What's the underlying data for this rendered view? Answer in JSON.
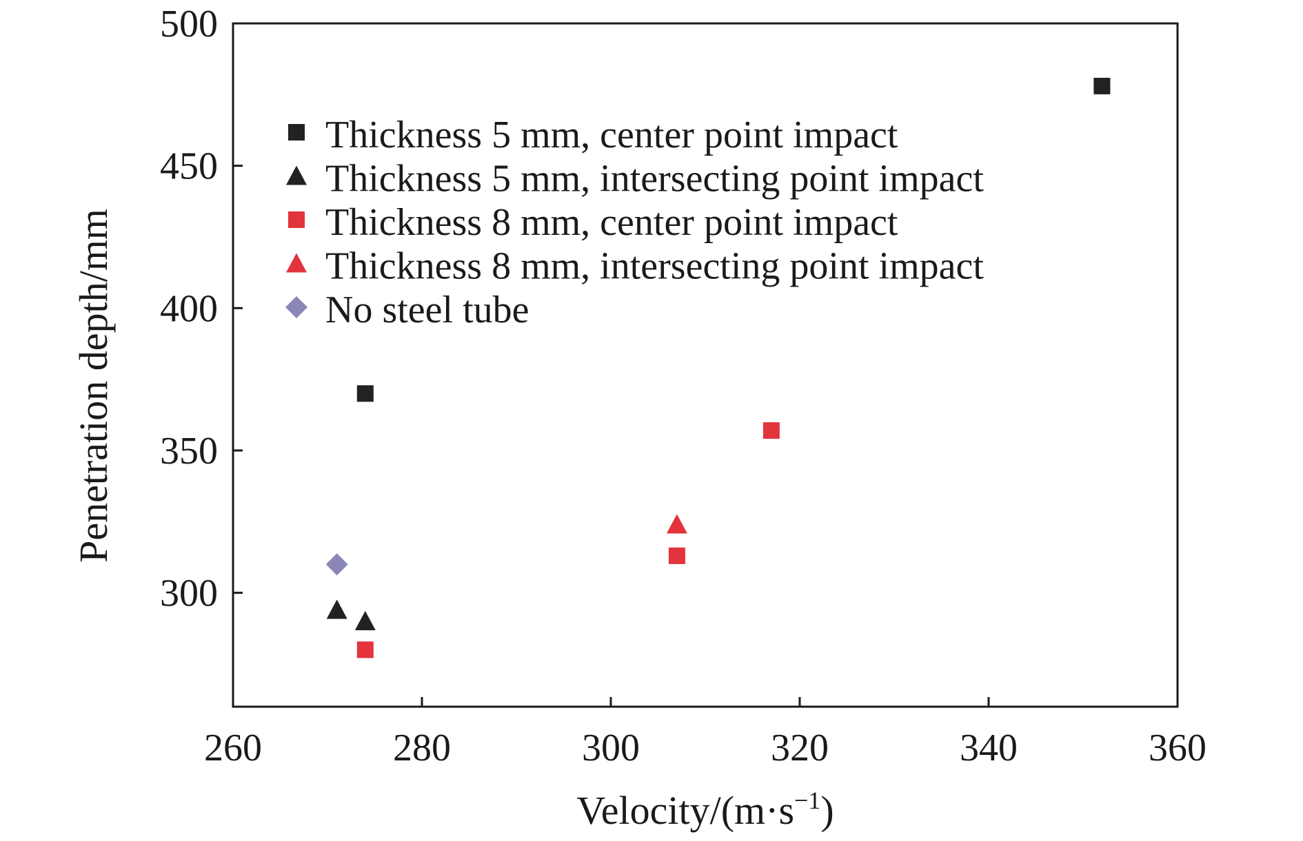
{
  "chart_data": {
    "type": "scatter",
    "title": "",
    "xlabel": "Velocity/(m·s",
    "xlabel_sup": "−1",
    "xlabel_close": ")",
    "ylabel": "Penetration depth/mm",
    "xlim": [
      260,
      360
    ],
    "ylim": [
      260,
      500
    ],
    "xticks": [
      260,
      280,
      300,
      320,
      340,
      360
    ],
    "yticks": [
      300,
      350,
      400,
      450,
      500
    ],
    "grid": false,
    "legend_position": "top-left",
    "series": [
      {
        "name": "Thickness 5 mm, center point impact",
        "marker": "square",
        "color": "#222222",
        "points": [
          {
            "x": 274,
            "y": 370
          },
          {
            "x": 352,
            "y": 478
          }
        ]
      },
      {
        "name": "Thickness 5 mm, intersecting point impact",
        "marker": "triangle",
        "color": "#222222",
        "points": [
          {
            "x": 271,
            "y": 294
          },
          {
            "x": 274,
            "y": 290
          }
        ]
      },
      {
        "name": "Thickness 8 mm, center point impact",
        "marker": "square",
        "color": "#e3333c",
        "points": [
          {
            "x": 274,
            "y": 280
          },
          {
            "x": 307,
            "y": 313
          },
          {
            "x": 317,
            "y": 357
          }
        ]
      },
      {
        "name": "Thickness 8 mm, intersecting point impact",
        "marker": "triangle",
        "color": "#e3333c",
        "points": [
          {
            "x": 307,
            "y": 324
          }
        ]
      },
      {
        "name": "No steel tube",
        "marker": "diamond",
        "color": "#8a86b8",
        "points": [
          {
            "x": 271,
            "y": 310
          }
        ]
      }
    ]
  }
}
